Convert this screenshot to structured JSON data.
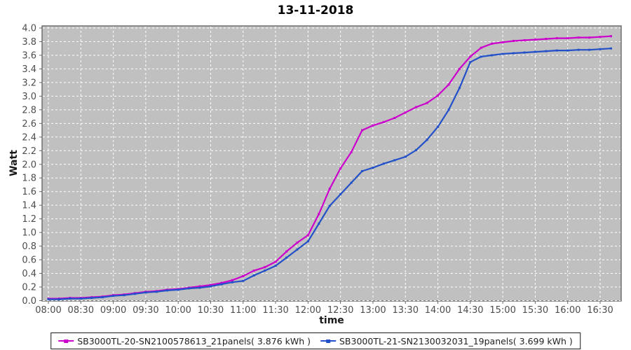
{
  "chart": {
    "title": "13-11-2018",
    "xlabel": "time",
    "ylabel": "Watt"
  },
  "chart_data": {
    "type": "line",
    "title": "13-11-2018",
    "xlabel": "time",
    "ylabel": "Watt",
    "ylim": [
      0.0,
      4.0
    ],
    "y_tick_step": 0.2,
    "grid": true,
    "legend_position": "bottom",
    "plot_background": "#c0c0c0",
    "grid_color": "#ffffff",
    "plot_border_color": "#707070",
    "tick_label_color": "#4d4d4d",
    "x_ticks": [
      "08:00",
      "08:30",
      "09:00",
      "09:30",
      "10:00",
      "10:30",
      "11:00",
      "11:30",
      "12:00",
      "12:30",
      "13:00",
      "13:30",
      "14:00",
      "14:30",
      "15:00",
      "15:30",
      "16:00",
      "16:30"
    ],
    "x": [
      "08:00",
      "08:10",
      "08:20",
      "08:30",
      "08:40",
      "08:50",
      "09:00",
      "09:10",
      "09:20",
      "09:30",
      "09:40",
      "09:50",
      "10:00",
      "10:10",
      "10:20",
      "10:30",
      "10:40",
      "10:50",
      "11:00",
      "11:10",
      "11:20",
      "11:30",
      "11:40",
      "11:50",
      "12:00",
      "12:10",
      "12:20",
      "12:30",
      "12:40",
      "12:50",
      "13:00",
      "13:10",
      "13:20",
      "13:30",
      "13:40",
      "13:50",
      "14:00",
      "14:10",
      "14:20",
      "14:30",
      "14:40",
      "14:50",
      "15:00",
      "15:10",
      "15:20",
      "15:30",
      "15:40",
      "15:50",
      "16:00",
      "16:10",
      "16:20",
      "16:30",
      "16:40"
    ],
    "series": [
      {
        "name": "SB3000TL-20-SN2100578613_21panels( 3.876 kWh )",
        "color": "#cc00cc",
        "total_kwh": 3.876,
        "values": [
          0.03,
          0.03,
          0.04,
          0.04,
          0.05,
          0.06,
          0.08,
          0.09,
          0.11,
          0.13,
          0.14,
          0.16,
          0.17,
          0.19,
          0.21,
          0.23,
          0.26,
          0.3,
          0.36,
          0.44,
          0.49,
          0.57,
          0.72,
          0.85,
          0.96,
          1.27,
          1.64,
          1.94,
          2.18,
          2.5,
          2.57,
          2.62,
          2.68,
          2.76,
          2.84,
          2.9,
          3.01,
          3.17,
          3.4,
          3.58,
          3.71,
          3.77,
          3.79,
          3.81,
          3.82,
          3.83,
          3.84,
          3.85,
          3.85,
          3.86,
          3.86,
          3.87,
          3.88
        ]
      },
      {
        "name": "SB3000TL-21-SN2130032031_19panels( 3.699 kWh )",
        "color": "#2250c8",
        "total_kwh": 3.699,
        "values": [
          0.02,
          0.02,
          0.03,
          0.03,
          0.04,
          0.05,
          0.07,
          0.08,
          0.1,
          0.12,
          0.13,
          0.15,
          0.16,
          0.18,
          0.19,
          0.21,
          0.24,
          0.27,
          0.29,
          0.37,
          0.44,
          0.51,
          0.63,
          0.75,
          0.87,
          1.13,
          1.39,
          1.56,
          1.73,
          1.9,
          1.95,
          2.01,
          2.06,
          2.11,
          2.21,
          2.36,
          2.55,
          2.8,
          3.12,
          3.5,
          3.58,
          3.6,
          3.62,
          3.63,
          3.64,
          3.65,
          3.66,
          3.67,
          3.67,
          3.68,
          3.68,
          3.69,
          3.7
        ]
      }
    ]
  }
}
